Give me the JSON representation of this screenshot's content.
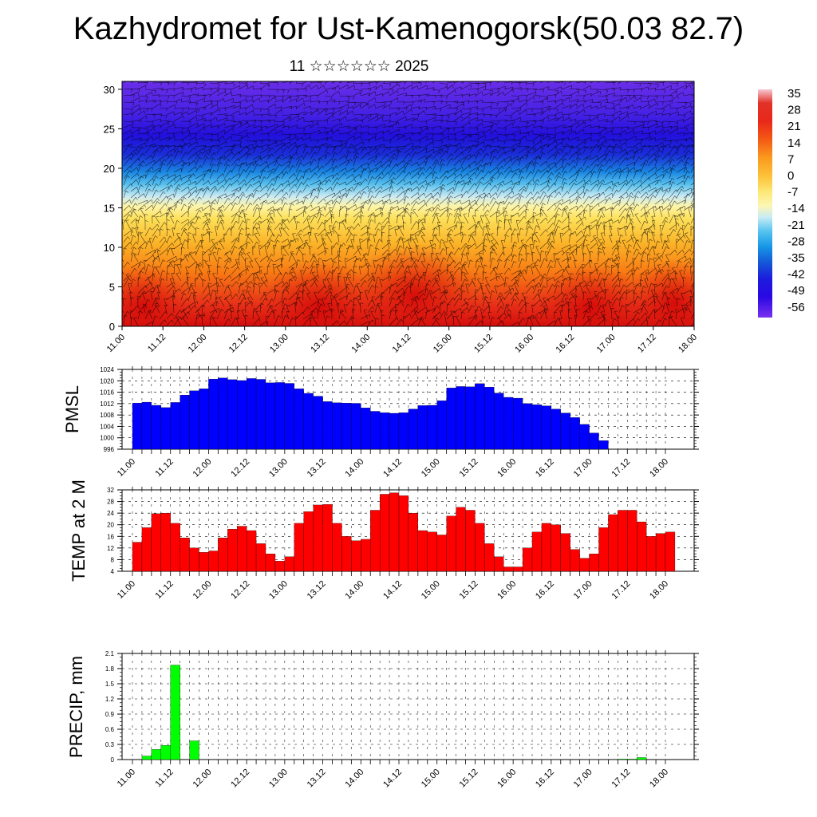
{
  "title": "Kazhydromet for Ust-Kamenogorsk(50.03 82.7)",
  "subtitle": "11 ☆☆☆☆☆☆ 2025",
  "chart_data": [
    {
      "type": "heatmap",
      "xlabel": "",
      "ylabel": "",
      "x_ticks": [
        "11.00",
        "11.12",
        "12.00",
        "12.12",
        "13.00",
        "13.12",
        "14.00",
        "14.12",
        "15.00",
        "15.12",
        "16.00",
        "16.12",
        "17.00",
        "17.12",
        "18.00"
      ],
      "y_ticks": [
        0,
        5,
        10,
        15,
        20,
        25,
        30
      ],
      "ylim": [
        0,
        31
      ],
      "colorbar_labels": [
        35,
        28,
        21,
        14,
        7,
        0,
        -7,
        -14,
        -21,
        -28,
        -35,
        -42,
        -49,
        -56
      ],
      "colorbar_colors": [
        "#f6c8d2",
        "#e23228",
        "#f45a14",
        "#fa9a1e",
        "#fcc238",
        "#fde878",
        "#fdf6b4",
        "#c8ecf4",
        "#58c4f0",
        "#1696e6",
        "#1456d8",
        "#1c1cdc",
        "#2a08e2",
        "#7a30f0"
      ],
      "wind_barbs": true
    },
    {
      "type": "line",
      "ylabel": "PMSL",
      "x_ticks": [
        "11.00",
        "11.12",
        "12.00",
        "12.12",
        "13.00",
        "13.12",
        "14.00",
        "14.12",
        "15.00",
        "15.12",
        "16.00",
        "16.12",
        "17.00",
        "17.12",
        "18.00"
      ],
      "y_ticks": [
        996,
        1000,
        1004,
        1008,
        1012,
        1016,
        1020,
        1024
      ],
      "ylim": [
        996,
        1024
      ],
      "color": "#0000ff",
      "values": [
        1012.2,
        1012.5,
        1011.4,
        1010.6,
        1012.4,
        1015.0,
        1016.5,
        1017.2,
        1020.6,
        1021.0,
        1020.4,
        1020.1,
        1020.8,
        1020.5,
        1019.3,
        1019.4,
        1019.1,
        1017.2,
        1015.6,
        1014.6,
        1012.7,
        1012.3,
        1012.2,
        1012.1,
        1010.5,
        1009.3,
        1008.8,
        1008.6,
        1008.8,
        1010.1,
        1011.3,
        1011.4,
        1013.0,
        1017.5,
        1018.0,
        1017.9,
        1019.0,
        1017.8,
        1015.7,
        1014.2,
        1013.9,
        1012.0,
        1011.6,
        1011.2,
        1010.1,
        1008.7,
        1007.1,
        1004.7,
        1001.7,
        999.0,
        996.0
      ]
    },
    {
      "type": "line",
      "ylabel": "TEMP at 2 M",
      "x_ticks": [
        "11.00",
        "11.12",
        "12.00",
        "12.12",
        "13.00",
        "13.12",
        "14.00",
        "14.12",
        "15.00",
        "15.12",
        "16.00",
        "16.12",
        "17.00",
        "17.12",
        "18.00"
      ],
      "y_ticks": [
        4,
        8,
        12,
        16,
        20,
        24,
        28,
        32
      ],
      "ylim": [
        4,
        32
      ],
      "color": "#ff0000",
      "values": [
        14.0,
        19.0,
        23.8,
        24.0,
        20.5,
        15.5,
        12.0,
        10.5,
        11.0,
        15.5,
        18.5,
        19.5,
        18.0,
        13.5,
        10.0,
        7.5,
        9.0,
        20.5,
        24.5,
        26.8,
        27.0,
        20.5,
        16.0,
        14.5,
        15.0,
        25.0,
        30.5,
        31.0,
        30.0,
        24.0,
        18.0,
        17.5,
        16.5,
        23.0,
        26.0,
        25.0,
        20.5,
        13.5,
        9.0,
        5.5,
        5.5,
        12.0,
        17.5,
        20.5,
        20.0,
        17.0,
        11.5,
        8.5,
        10.0,
        19.0,
        23.5,
        25.0,
        25.0,
        21.0,
        16.0,
        17.0,
        17.5
      ]
    },
    {
      "type": "bar",
      "ylabel": "PRECIP, mm",
      "x_ticks": [
        "11.00",
        "11.12",
        "12.00",
        "12.12",
        "13.00",
        "13.12",
        "14.00",
        "14.12",
        "15.00",
        "15.12",
        "16.00",
        "16.12",
        "17.00",
        "17.12",
        "18.00"
      ],
      "y_ticks": [
        0.0,
        0.3,
        0.6,
        0.9,
        1.2,
        1.5,
        1.8,
        2.1
      ],
      "ylim": [
        0,
        2.1
      ],
      "color": "#00ff00",
      "values": [
        0.0,
        0.07,
        0.2,
        0.28,
        1.87,
        0.0,
        0.37,
        0,
        0,
        0,
        0,
        0,
        0,
        0,
        0,
        0,
        0,
        0,
        0,
        0,
        0,
        0,
        0,
        0,
        0,
        0,
        0,
        0,
        0,
        0,
        0,
        0,
        0,
        0,
        0,
        0,
        0,
        0,
        0,
        0,
        0,
        0,
        0,
        0,
        0,
        0,
        0,
        0,
        0,
        0,
        0,
        0.01,
        0.01,
        0.04
      ]
    }
  ]
}
